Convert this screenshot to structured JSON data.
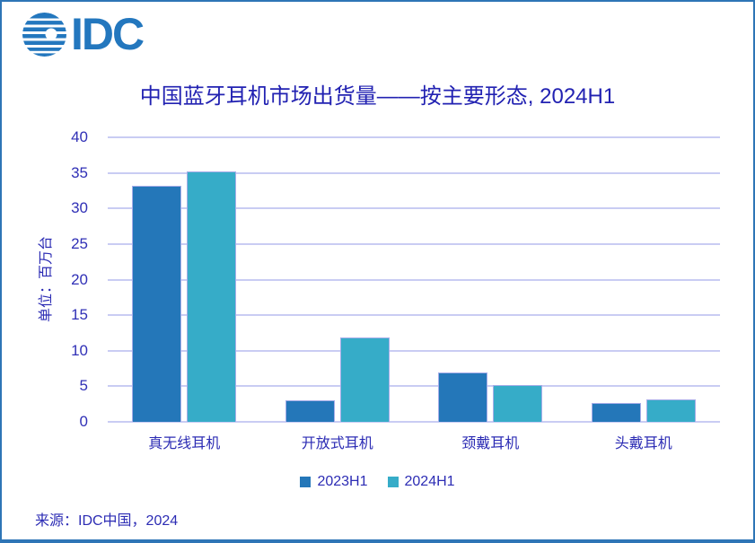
{
  "logo": {
    "text": "IDC"
  },
  "title": "中国蓝牙耳机市场出货量——按主要形态, 2024H1",
  "source": "来源：IDC中国，2024",
  "colors": {
    "logo_blue": "#2377BE",
    "series_2023H1": "#2477B9",
    "series_2024H1": "#36ACC8",
    "navy_text": "#2C2CB4",
    "gridline": "#C9CCF3",
    "page_border": "#2E75B6"
  },
  "chart_data": {
    "type": "bar",
    "title": "中国蓝牙耳机市场出货量——按主要形态, 2024H1",
    "unit_label": "单位：百万台",
    "categories": [
      "真无线耳机",
      "开放式耳机",
      "颈戴耳机",
      "头戴耳机"
    ],
    "series": [
      {
        "name": "2023H1",
        "color": "#2477B9",
        "values": [
          33.2,
          3.0,
          7.0,
          2.6
        ]
      },
      {
        "name": "2024H1",
        "color": "#36ACC8",
        "values": [
          35.2,
          11.9,
          5.2,
          3.1
        ]
      }
    ],
    "ylabel": "单位：百万台",
    "xlabel": "",
    "ylim": [
      0,
      40
    ],
    "ytick_step": 5,
    "grid": true,
    "legend_position": "bottom"
  }
}
